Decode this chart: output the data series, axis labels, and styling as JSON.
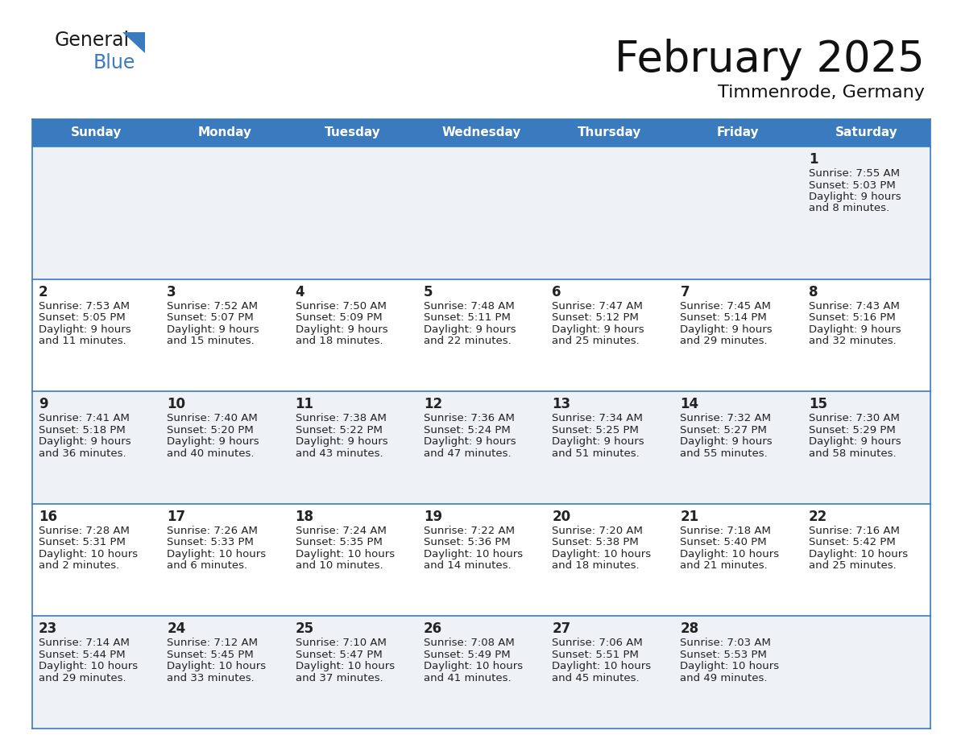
{
  "title": "February 2025",
  "subtitle": "Timmenrode, Germany",
  "header_bg": "#3a7abf",
  "header_text_color": "#ffffff",
  "day_names": [
    "Sunday",
    "Monday",
    "Tuesday",
    "Wednesday",
    "Thursday",
    "Friday",
    "Saturday"
  ],
  "cell_bg_light": "#eef2f7",
  "cell_bg_white": "#ffffff",
  "border_color": "#3a7abf",
  "number_color": "#222222",
  "text_color": "#222222",
  "title_color": "#111111",
  "subtitle_color": "#111111",
  "days": [
    {
      "day": 1,
      "col": 6,
      "row": 0,
      "sunrise": "7:55 AM",
      "sunset": "5:03 PM",
      "daylight": "9 hours",
      "daylight2": "and 8 minutes."
    },
    {
      "day": 2,
      "col": 0,
      "row": 1,
      "sunrise": "7:53 AM",
      "sunset": "5:05 PM",
      "daylight": "9 hours",
      "daylight2": "and 11 minutes."
    },
    {
      "day": 3,
      "col": 1,
      "row": 1,
      "sunrise": "7:52 AM",
      "sunset": "5:07 PM",
      "daylight": "9 hours",
      "daylight2": "and 15 minutes."
    },
    {
      "day": 4,
      "col": 2,
      "row": 1,
      "sunrise": "7:50 AM",
      "sunset": "5:09 PM",
      "daylight": "9 hours",
      "daylight2": "and 18 minutes."
    },
    {
      "day": 5,
      "col": 3,
      "row": 1,
      "sunrise": "7:48 AM",
      "sunset": "5:11 PM",
      "daylight": "9 hours",
      "daylight2": "and 22 minutes."
    },
    {
      "day": 6,
      "col": 4,
      "row": 1,
      "sunrise": "7:47 AM",
      "sunset": "5:12 PM",
      "daylight": "9 hours",
      "daylight2": "and 25 minutes."
    },
    {
      "day": 7,
      "col": 5,
      "row": 1,
      "sunrise": "7:45 AM",
      "sunset": "5:14 PM",
      "daylight": "9 hours",
      "daylight2": "and 29 minutes."
    },
    {
      "day": 8,
      "col": 6,
      "row": 1,
      "sunrise": "7:43 AM",
      "sunset": "5:16 PM",
      "daylight": "9 hours",
      "daylight2": "and 32 minutes."
    },
    {
      "day": 9,
      "col": 0,
      "row": 2,
      "sunrise": "7:41 AM",
      "sunset": "5:18 PM",
      "daylight": "9 hours",
      "daylight2": "and 36 minutes."
    },
    {
      "day": 10,
      "col": 1,
      "row": 2,
      "sunrise": "7:40 AM",
      "sunset": "5:20 PM",
      "daylight": "9 hours",
      "daylight2": "and 40 minutes."
    },
    {
      "day": 11,
      "col": 2,
      "row": 2,
      "sunrise": "7:38 AM",
      "sunset": "5:22 PM",
      "daylight": "9 hours",
      "daylight2": "and 43 minutes."
    },
    {
      "day": 12,
      "col": 3,
      "row": 2,
      "sunrise": "7:36 AM",
      "sunset": "5:24 PM",
      "daylight": "9 hours",
      "daylight2": "and 47 minutes."
    },
    {
      "day": 13,
      "col": 4,
      "row": 2,
      "sunrise": "7:34 AM",
      "sunset": "5:25 PM",
      "daylight": "9 hours",
      "daylight2": "and 51 minutes."
    },
    {
      "day": 14,
      "col": 5,
      "row": 2,
      "sunrise": "7:32 AM",
      "sunset": "5:27 PM",
      "daylight": "9 hours",
      "daylight2": "and 55 minutes."
    },
    {
      "day": 15,
      "col": 6,
      "row": 2,
      "sunrise": "7:30 AM",
      "sunset": "5:29 PM",
      "daylight": "9 hours",
      "daylight2": "and 58 minutes."
    },
    {
      "day": 16,
      "col": 0,
      "row": 3,
      "sunrise": "7:28 AM",
      "sunset": "5:31 PM",
      "daylight": "10 hours",
      "daylight2": "and 2 minutes."
    },
    {
      "day": 17,
      "col": 1,
      "row": 3,
      "sunrise": "7:26 AM",
      "sunset": "5:33 PM",
      "daylight": "10 hours",
      "daylight2": "and 6 minutes."
    },
    {
      "day": 18,
      "col": 2,
      "row": 3,
      "sunrise": "7:24 AM",
      "sunset": "5:35 PM",
      "daylight": "10 hours",
      "daylight2": "and 10 minutes."
    },
    {
      "day": 19,
      "col": 3,
      "row": 3,
      "sunrise": "7:22 AM",
      "sunset": "5:36 PM",
      "daylight": "10 hours",
      "daylight2": "and 14 minutes."
    },
    {
      "day": 20,
      "col": 4,
      "row": 3,
      "sunrise": "7:20 AM",
      "sunset": "5:38 PM",
      "daylight": "10 hours",
      "daylight2": "and 18 minutes."
    },
    {
      "day": 21,
      "col": 5,
      "row": 3,
      "sunrise": "7:18 AM",
      "sunset": "5:40 PM",
      "daylight": "10 hours",
      "daylight2": "and 21 minutes."
    },
    {
      "day": 22,
      "col": 6,
      "row": 3,
      "sunrise": "7:16 AM",
      "sunset": "5:42 PM",
      "daylight": "10 hours",
      "daylight2": "and 25 minutes."
    },
    {
      "day": 23,
      "col": 0,
      "row": 4,
      "sunrise": "7:14 AM",
      "sunset": "5:44 PM",
      "daylight": "10 hours",
      "daylight2": "and 29 minutes."
    },
    {
      "day": 24,
      "col": 1,
      "row": 4,
      "sunrise": "7:12 AM",
      "sunset": "5:45 PM",
      "daylight": "10 hours",
      "daylight2": "and 33 minutes."
    },
    {
      "day": 25,
      "col": 2,
      "row": 4,
      "sunrise": "7:10 AM",
      "sunset": "5:47 PM",
      "daylight": "10 hours",
      "daylight2": "and 37 minutes."
    },
    {
      "day": 26,
      "col": 3,
      "row": 4,
      "sunrise": "7:08 AM",
      "sunset": "5:49 PM",
      "daylight": "10 hours",
      "daylight2": "and 41 minutes."
    },
    {
      "day": 27,
      "col": 4,
      "row": 4,
      "sunrise": "7:06 AM",
      "sunset": "5:51 PM",
      "daylight": "10 hours",
      "daylight2": "and 45 minutes."
    },
    {
      "day": 28,
      "col": 5,
      "row": 4,
      "sunrise": "7:03 AM",
      "sunset": "5:53 PM",
      "daylight": "10 hours",
      "daylight2": "and 49 minutes."
    }
  ]
}
